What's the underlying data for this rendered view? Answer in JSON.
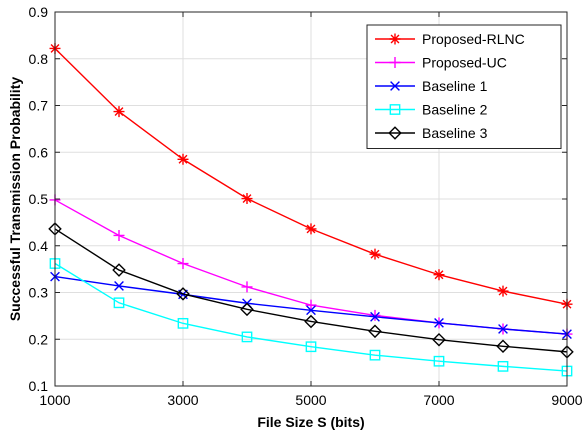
{
  "chart_data": {
    "type": "line",
    "title": "",
    "xlabel": "File Size S (bits)",
    "ylabel": "Successful Transmission Probability",
    "x": [
      1000,
      2000,
      3000,
      4000,
      5000,
      6000,
      7000,
      8000,
      9000
    ],
    "xlim": [
      1000,
      9000
    ],
    "ylim": [
      0.1,
      0.9
    ],
    "xticks": [
      "1000",
      "3000",
      "5000",
      "7000",
      "9000"
    ],
    "xtick_values": [
      1000,
      3000,
      5000,
      7000,
      9000
    ],
    "yticks": [
      "0.1",
      "0.2",
      "0.3",
      "0.4",
      "0.5",
      "0.6",
      "0.7",
      "0.8",
      "0.9"
    ],
    "ytick_values": [
      0.1,
      0.2,
      0.3,
      0.4,
      0.5,
      0.6,
      0.7,
      0.8,
      0.9
    ],
    "grid": true,
    "legend_position": "top-right",
    "series": [
      {
        "name": "Proposed-RLNC",
        "color": "#ff0000",
        "marker": "asterisk",
        "values": [
          0.822,
          0.687,
          0.585,
          0.501,
          0.436,
          0.382,
          0.338,
          0.303,
          0.275
        ]
      },
      {
        "name": "Proposed-UC",
        "color": "#ff00ff",
        "marker": "plus",
        "values": [
          0.498,
          0.422,
          0.362,
          0.312,
          0.273,
          0.251,
          0.235,
          0.222,
          0.211
        ]
      },
      {
        "name": "Baseline 1",
        "color": "#0000ff",
        "marker": "x",
        "values": [
          0.334,
          0.314,
          0.296,
          0.277,
          0.262,
          0.248,
          0.235,
          0.222,
          0.211
        ]
      },
      {
        "name": "Baseline 2",
        "color": "#00ffff",
        "marker": "square",
        "values": [
          0.362,
          0.278,
          0.234,
          0.205,
          0.184,
          0.166,
          0.153,
          0.142,
          0.132
        ]
      },
      {
        "name": "Baseline 3",
        "color": "#000000",
        "marker": "diamond",
        "values": [
          0.436,
          0.348,
          0.297,
          0.264,
          0.238,
          0.217,
          0.199,
          0.185,
          0.173
        ]
      }
    ]
  }
}
